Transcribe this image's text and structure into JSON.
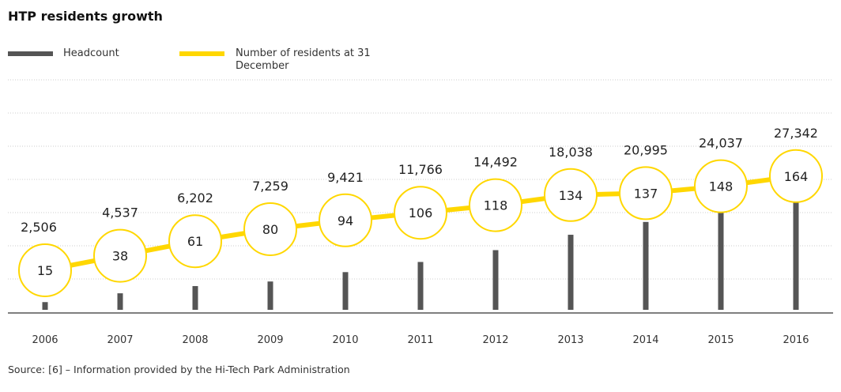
{
  "chart_data": {
    "type": "bar+line",
    "title": "HTP residents growth",
    "categories": [
      "2006",
      "2007",
      "2008",
      "2009",
      "2010",
      "2011",
      "2012",
      "2013",
      "2014",
      "2015",
      "2016"
    ],
    "series": [
      {
        "name": "Headcount",
        "type": "bar",
        "color": "#555555",
        "values": [
          2506,
          4537,
          6202,
          7259,
          9421,
          11766,
          14492,
          18038,
          20995,
          24037,
          27342
        ],
        "labels": [
          "2,506",
          "4,537",
          "6,202",
          "7,259",
          "9,421",
          "11,766",
          "14,492",
          "18,038",
          "20,995",
          "24,037",
          "27,342"
        ]
      },
      {
        "name": "Number of residents at 31 December",
        "type": "line",
        "color": "#FFD700",
        "values": [
          15,
          38,
          61,
          80,
          94,
          106,
          118,
          134,
          137,
          148,
          164
        ]
      }
    ],
    "grid": true,
    "legend": "top-left",
    "source": "Source: [6] – Information provided by the Hi-Tech Park Administration"
  }
}
